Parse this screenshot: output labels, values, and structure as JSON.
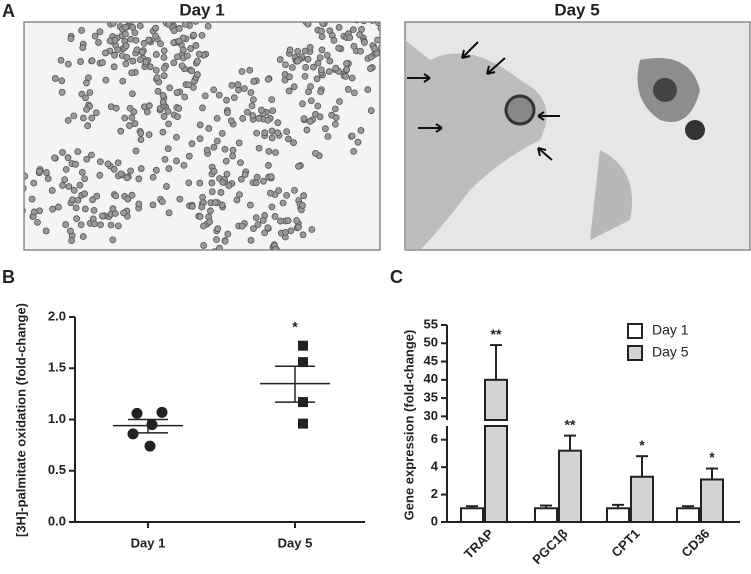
{
  "panel_labels": [
    "A",
    "B",
    "C"
  ],
  "images": [
    {
      "title": "Day 1"
    },
    {
      "title": "Day 5"
    }
  ],
  "chart_data": [
    {
      "type": "dot_plot",
      "y_label": "[3H]-palmitate oxidation (fold-change)",
      "categories": [
        "Day 1",
        "Day 5"
      ],
      "groups": [
        {
          "marker": "circle",
          "color": "#222222",
          "values": [
            1.06,
            1.07,
            0.95,
            0.86,
            0.74
          ],
          "mean": 0.94,
          "sem": [
            0.87,
            1.0
          ]
        },
        {
          "marker": "square",
          "color": "#222222",
          "values": [
            1.72,
            1.56,
            1.17,
            0.96
          ],
          "mean": 1.35,
          "sem": [
            1.17,
            1.52
          ],
          "annotation": "*"
        }
      ],
      "ylim": [
        0,
        2.1
      ],
      "yticks": [
        {
          "value": 0,
          "label": "0.0"
        },
        {
          "value": 0.5,
          "label": "0.5"
        },
        {
          "value": 1,
          "label": "1.0"
        },
        {
          "value": 1.5,
          "label": "1.5"
        },
        {
          "value": 2,
          "label": "2.0"
        }
      ]
    },
    {
      "type": "bar",
      "y_label": "Gene expression (fold-change)",
      "categories": [
        "TRAP",
        "PGC1β",
        "CPT1",
        "CD36"
      ],
      "series": [
        {
          "name": "Day 1",
          "color": "#ffffff",
          "values": [
            1,
            1,
            1,
            1
          ],
          "errors": [
            0.15,
            0.2,
            0.25,
            0.15
          ]
        },
        {
          "name": "Day 5",
          "color": "#d3d3d3",
          "values": [
            40,
            5.2,
            3.3,
            3.1
          ],
          "errors": [
            9.5,
            1.1,
            1.5,
            0.8
          ],
          "annotations": [
            "**",
            "**",
            "*",
            "*"
          ]
        }
      ],
      "ylim": [
        0,
        7
      ],
      "yticks": [
        0,
        2,
        4,
        6
      ],
      "axis_break": {
        "ylim": [
          29,
          55
        ],
        "yticks": [
          30,
          35,
          40,
          45,
          50,
          55
        ]
      },
      "legend": "top-right"
    }
  ]
}
